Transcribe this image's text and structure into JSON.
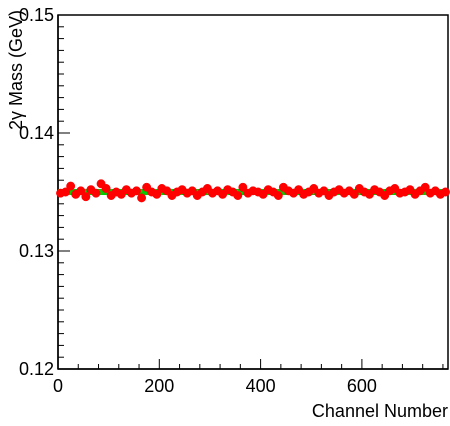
{
  "chart_data": {
    "type": "scatter",
    "title": "",
    "xlabel": "Channel Number",
    "ylabel": "2γ Mass (GeV)",
    "xlim": [
      0,
      770
    ],
    "ylim": [
      0.12,
      0.15
    ],
    "x_ticks": [
      0,
      200,
      400,
      600
    ],
    "y_ticks": [
      0.12,
      0.13,
      0.14,
      0.15
    ],
    "x_tick_labels": [
      "0",
      "200",
      "400",
      "600"
    ],
    "y_tick_labels": [
      "0.12",
      "0.13",
      "0.14",
      "0.15"
    ],
    "grid": false,
    "reference_line": {
      "y": 0.135,
      "color": "#00cc00"
    },
    "series": [
      {
        "color": "#ff0000",
        "marker": "circle",
        "x": [
          5,
          15,
          25,
          35,
          45,
          55,
          65,
          75,
          85,
          95,
          105,
          115,
          125,
          135,
          145,
          155,
          165,
          175,
          185,
          195,
          205,
          215,
          225,
          235,
          245,
          255,
          265,
          275,
          285,
          295,
          305,
          315,
          325,
          335,
          345,
          355,
          365,
          375,
          385,
          395,
          405,
          415,
          425,
          435,
          445,
          455,
          465,
          475,
          485,
          495,
          505,
          515,
          525,
          535,
          545,
          555,
          565,
          575,
          585,
          595,
          605,
          615,
          625,
          635,
          645,
          655,
          665,
          675,
          685,
          695,
          705,
          715,
          725,
          735,
          745,
          755,
          765
        ],
        "y": [
          0.1349,
          0.135,
          0.1355,
          0.1348,
          0.1351,
          0.1346,
          0.1352,
          0.1349,
          0.1357,
          0.1353,
          0.1347,
          0.135,
          0.1348,
          0.1352,
          0.1349,
          0.1351,
          0.1345,
          0.1354,
          0.135,
          0.1348,
          0.1353,
          0.1351,
          0.1347,
          0.135,
          0.1352,
          0.1349,
          0.1351,
          0.1347,
          0.135,
          0.1353,
          0.1349,
          0.1351,
          0.1348,
          0.1352,
          0.135,
          0.1347,
          0.1354,
          0.1349,
          0.1351,
          0.135,
          0.1348,
          0.1352,
          0.135,
          0.1347,
          0.1354,
          0.1351,
          0.1349,
          0.1352,
          0.1348,
          0.135,
          0.1353,
          0.1349,
          0.1351,
          0.1347,
          0.135,
          0.1352,
          0.1349,
          0.1351,
          0.1348,
          0.1353,
          0.135,
          0.1348,
          0.1352,
          0.135,
          0.1347,
          0.1351,
          0.1353,
          0.1349,
          0.135,
          0.1352,
          0.1348,
          0.1351,
          0.1354,
          0.1349,
          0.1351,
          0.1348,
          0.135
        ]
      }
    ]
  }
}
